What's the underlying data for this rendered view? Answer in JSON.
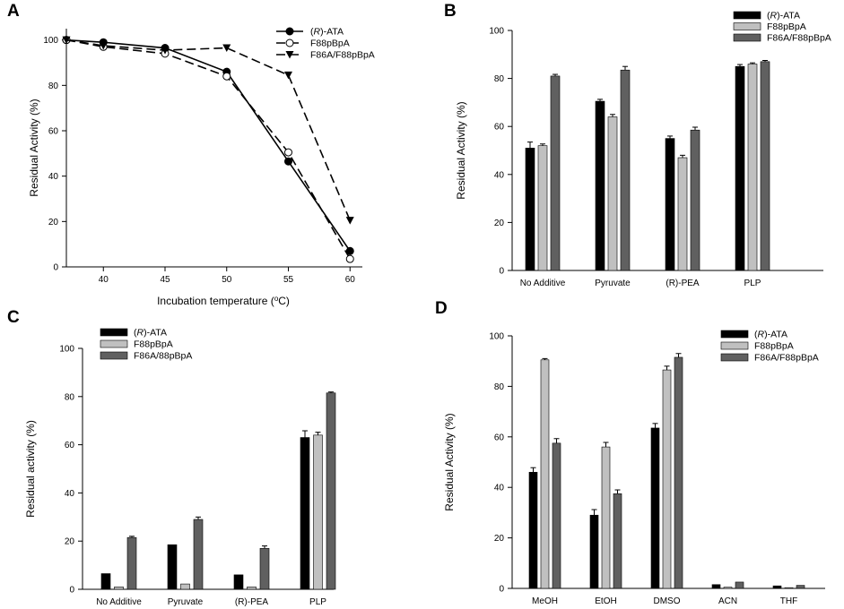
{
  "chart_data": [
    {
      "panel": "A",
      "type": "line",
      "xlabel": "Incubation temperature (°C)",
      "ylabel": "Residual Activity (%)",
      "x": [
        37,
        40,
        45,
        50,
        55,
        60
      ],
      "xticks": [
        40,
        45,
        50,
        55,
        60
      ],
      "xlim": [
        37,
        61
      ],
      "ylim": [
        0,
        105
      ],
      "yticks": [
        0,
        20,
        40,
        60,
        80,
        100
      ],
      "legend_position": "top-right",
      "series": [
        {
          "name": "(R)-ATA",
          "name_prefix": "(",
          "name_italic": "R",
          "name_suffix": ")-ATA",
          "style": "solid",
          "marker": "filled-circle",
          "values": [
            100,
            99,
            96.5,
            86,
            46.5,
            7
          ]
        },
        {
          "name": "F88pBpA",
          "style": "dashed",
          "marker": "open-circle",
          "values": [
            100,
            97,
            94,
            84,
            50.5,
            3.5
          ]
        },
        {
          "name": "F86A/F88pBpA",
          "style": "dashed",
          "marker": "filled-triangle-down",
          "values": [
            100,
            97.5,
            95.5,
            96.5,
            84.5,
            20.5
          ]
        }
      ]
    },
    {
      "panel": "B",
      "type": "bar",
      "ylabel": "Residual Activity (%)",
      "ylim": [
        0,
        100
      ],
      "yticks": [
        0,
        20,
        40,
        60,
        80,
        100
      ],
      "categories": [
        "No Additive",
        "Pyruvate",
        "(R)-PEA",
        "PLP"
      ],
      "legend_position": "top-right",
      "series": [
        {
          "name": "(R)-ATA",
          "name_prefix": "(",
          "name_italic": "R",
          "name_suffix": ")-ATA",
          "color": "#000000",
          "values": [
            51,
            70.5,
            55,
            85
          ],
          "errors": [
            2.5,
            0.8,
            1,
            0.8
          ]
        },
        {
          "name": "F88pBpA",
          "color": "#c0c0c0",
          "values": [
            52,
            64,
            47,
            86
          ],
          "errors": [
            0.7,
            1,
            1,
            0.5
          ]
        },
        {
          "name": "F86A/F88pBpA",
          "color": "#606060",
          "values": [
            81,
            83.5,
            58.5,
            87
          ],
          "errors": [
            0.7,
            1.5,
            1.2,
            0.5
          ]
        }
      ]
    },
    {
      "panel": "C",
      "type": "bar",
      "ylabel": "Residual activity (%)",
      "ylim": [
        0,
        100
      ],
      "yticks": [
        0,
        20,
        40,
        60,
        80,
        100
      ],
      "categories": [
        "No Additive",
        "Pyruvate",
        "(R)-PEA",
        "PLP"
      ],
      "legend_position": "top-left",
      "series": [
        {
          "name": "(R)-ATA",
          "name_prefix": "(",
          "name_italic": "R",
          "name_suffix": ")-ATA",
          "color": "#000000",
          "values": [
            6.5,
            18.5,
            6,
            63
          ],
          "errors": [
            0,
            0,
            0,
            2.8
          ]
        },
        {
          "name": "F88pBpA",
          "color": "#c0c0c0",
          "values": [
            1,
            2.2,
            1,
            64
          ],
          "errors": [
            0,
            0,
            0,
            1.2
          ]
        },
        {
          "name": "F86A/88pBpA",
          "color": "#606060",
          "values": [
            21.5,
            29,
            17,
            81.5
          ],
          "errors": [
            0.5,
            1,
            1,
            0.4
          ]
        }
      ]
    },
    {
      "panel": "D",
      "type": "bar",
      "ylabel": "Residual Activity (%)",
      "ylim": [
        0,
        100
      ],
      "yticks": [
        0,
        20,
        40,
        60,
        80,
        100
      ],
      "categories": [
        "MeOH",
        "EtOH",
        "DMSO",
        "ACN",
        "THF"
      ],
      "legend_position": "top-right",
      "series": [
        {
          "name": "(R)-ATA",
          "name_prefix": "(",
          "name_italic": "R",
          "name_suffix": ")-ATA",
          "color": "#000000",
          "values": [
            46,
            29,
            63.5,
            1.5,
            1
          ],
          "errors": [
            1.8,
            2.2,
            1.8,
            0,
            0
          ]
        },
        {
          "name": "F88pBpA",
          "color": "#c0c0c0",
          "values": [
            90.5,
            56,
            86.5,
            0.5,
            0.3
          ],
          "errors": [
            0.5,
            1.8,
            1.5,
            0,
            0
          ]
        },
        {
          "name": "F86A/F88pBpA",
          "color": "#606060",
          "values": [
            57.5,
            37.5,
            91.5,
            2.5,
            1.2
          ],
          "errors": [
            1.8,
            1.5,
            1.5,
            0,
            0
          ]
        }
      ]
    }
  ]
}
